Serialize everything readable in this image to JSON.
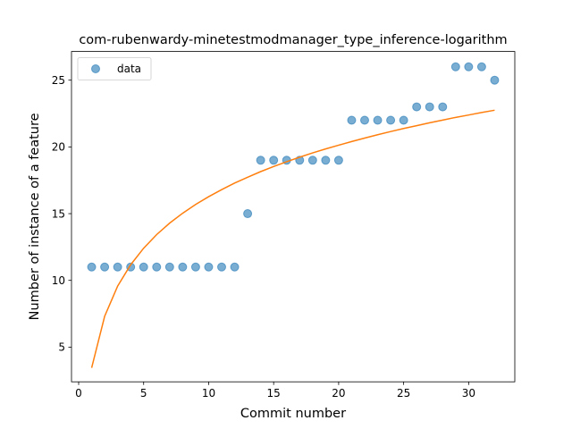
{
  "chart_data": {
    "type": "scatter",
    "title": "com-rubenwardy-minetestmodmanager_type_inference-logarithm",
    "xlabel": "Commit number",
    "ylabel": "Number of instance of a feature",
    "xlim": [
      -0.55,
      33.55
    ],
    "ylim": [
      2.4,
      27.15
    ],
    "xticks": [
      0,
      5,
      10,
      15,
      20,
      25,
      30
    ],
    "yticks": [
      5,
      10,
      15,
      20,
      25
    ],
    "legend": {
      "position": "top-left",
      "entries": [
        "data"
      ]
    },
    "series": [
      {
        "name": "data",
        "kind": "scatter",
        "color": "#1f77b4",
        "x": [
          1,
          2,
          3,
          4,
          5,
          6,
          7,
          8,
          9,
          10,
          11,
          12,
          13,
          14,
          15,
          16,
          17,
          18,
          19,
          20,
          21,
          22,
          23,
          24,
          25,
          26,
          27,
          28,
          29,
          30,
          31,
          32
        ],
        "y": [
          11,
          11,
          11,
          11,
          11,
          11,
          11,
          11,
          11,
          11,
          11,
          11,
          15,
          19,
          19,
          19,
          19,
          19,
          19,
          19,
          22,
          22,
          22,
          22,
          22,
          23,
          23,
          23,
          26,
          26,
          26,
          25
        ]
      },
      {
        "kind": "line",
        "color": "#ff7f0e",
        "x": [
          1,
          2,
          3,
          4,
          5,
          6,
          7,
          8,
          9,
          10,
          11,
          12,
          13,
          14,
          15,
          16,
          17,
          18,
          19,
          20,
          21,
          22,
          23,
          24,
          25,
          26,
          27,
          28,
          29,
          30,
          31,
          32
        ],
        "y": [
          3.45,
          7.31,
          9.57,
          11.17,
          12.41,
          13.43,
          14.29,
          15.03,
          15.69,
          16.27,
          16.8,
          17.29,
          17.73,
          18.15,
          18.53,
          18.89,
          19.23,
          19.55,
          19.85,
          20.13,
          20.4,
          20.66,
          20.91,
          21.15,
          21.38,
          21.59,
          21.81,
          22.01,
          22.21,
          22.39,
          22.58,
          22.75
        ]
      }
    ]
  }
}
